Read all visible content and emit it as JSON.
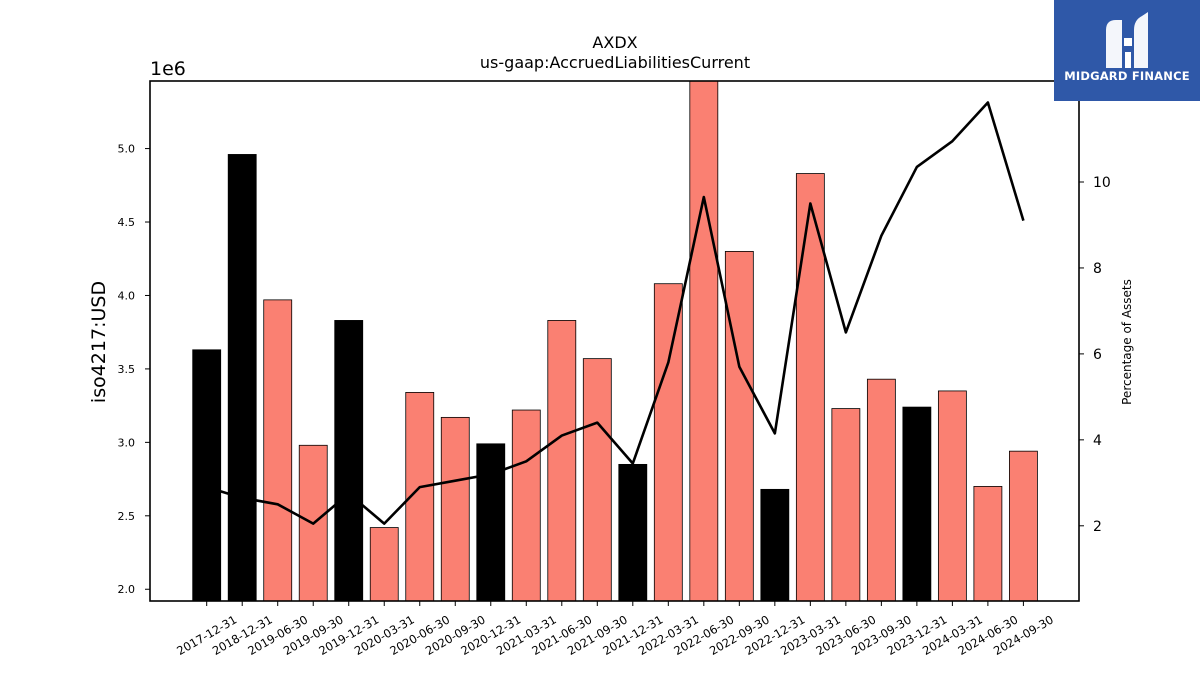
{
  "chart_data": {
    "type": "bar+line",
    "title": "AXDX",
    "subtitle": "us-gaap:AccruedLiabilitiesCurrent",
    "ylabel": "iso4217:USD",
    "y_offset_label": "1e6",
    "y2label": "Percentage of Assets",
    "ylim": [
      1920000,
      5460000
    ],
    "y2lim": [
      0.25,
      12.35
    ],
    "yticks": [
      2000000,
      2500000,
      3000000,
      3500000,
      4000000,
      4500000,
      5000000
    ],
    "ytick_labels": [
      "2.0",
      "2.5",
      "3.0",
      "3.5",
      "4.0",
      "4.5",
      "5.0"
    ],
    "y2ticks": [
      2,
      4,
      6,
      8,
      10
    ],
    "y2tick_labels": [
      "2",
      "4",
      "6",
      "8",
      "10"
    ],
    "colors": {
      "annual": "#000000",
      "quarterly": "#fa8072",
      "line": "#000000"
    },
    "categories": [
      "2017-12-31",
      "2018-12-31",
      "2019-06-30",
      "2019-09-30",
      "2019-12-31",
      "2020-03-31",
      "2020-06-30",
      "2020-09-30",
      "2020-12-31",
      "2021-03-31",
      "2021-06-30",
      "2021-09-30",
      "2021-12-31",
      "2022-03-31",
      "2022-06-30",
      "2022-09-30",
      "2022-12-31",
      "2023-03-31",
      "2023-06-30",
      "2023-09-30",
      "2023-12-31",
      "2024-03-31",
      "2024-06-30",
      "2024-09-30"
    ],
    "bar_types": [
      "annual",
      "annual",
      "quarterly",
      "quarterly",
      "annual",
      "quarterly",
      "quarterly",
      "quarterly",
      "annual",
      "quarterly",
      "quarterly",
      "quarterly",
      "annual",
      "quarterly",
      "quarterly",
      "quarterly",
      "annual",
      "quarterly",
      "quarterly",
      "quarterly",
      "annual",
      "quarterly",
      "quarterly",
      "quarterly"
    ],
    "values": [
      3630000,
      4960000,
      3970000,
      2980000,
      3830000,
      2420000,
      3340000,
      3170000,
      2990000,
      3220000,
      3830000,
      3570000,
      2850000,
      4080000,
      5500000,
      4300000,
      2680000,
      4830000,
      3230000,
      3430000,
      3240000,
      3350000,
      2700000,
      2940000
    ],
    "series": [
      {
        "values": [
          2.9,
          2.65,
          2.5,
          2.05,
          2.75,
          2.05,
          2.9,
          3.05,
          3.2,
          3.5,
          4.1,
          4.4,
          3.45,
          5.8,
          9.65,
          5.7,
          4.15,
          9.5,
          6.5,
          8.75,
          10.35,
          10.95,
          11.85,
          9.1
        ]
      }
    ]
  },
  "logo": {
    "text": "MIDGARD FINANCE"
  }
}
